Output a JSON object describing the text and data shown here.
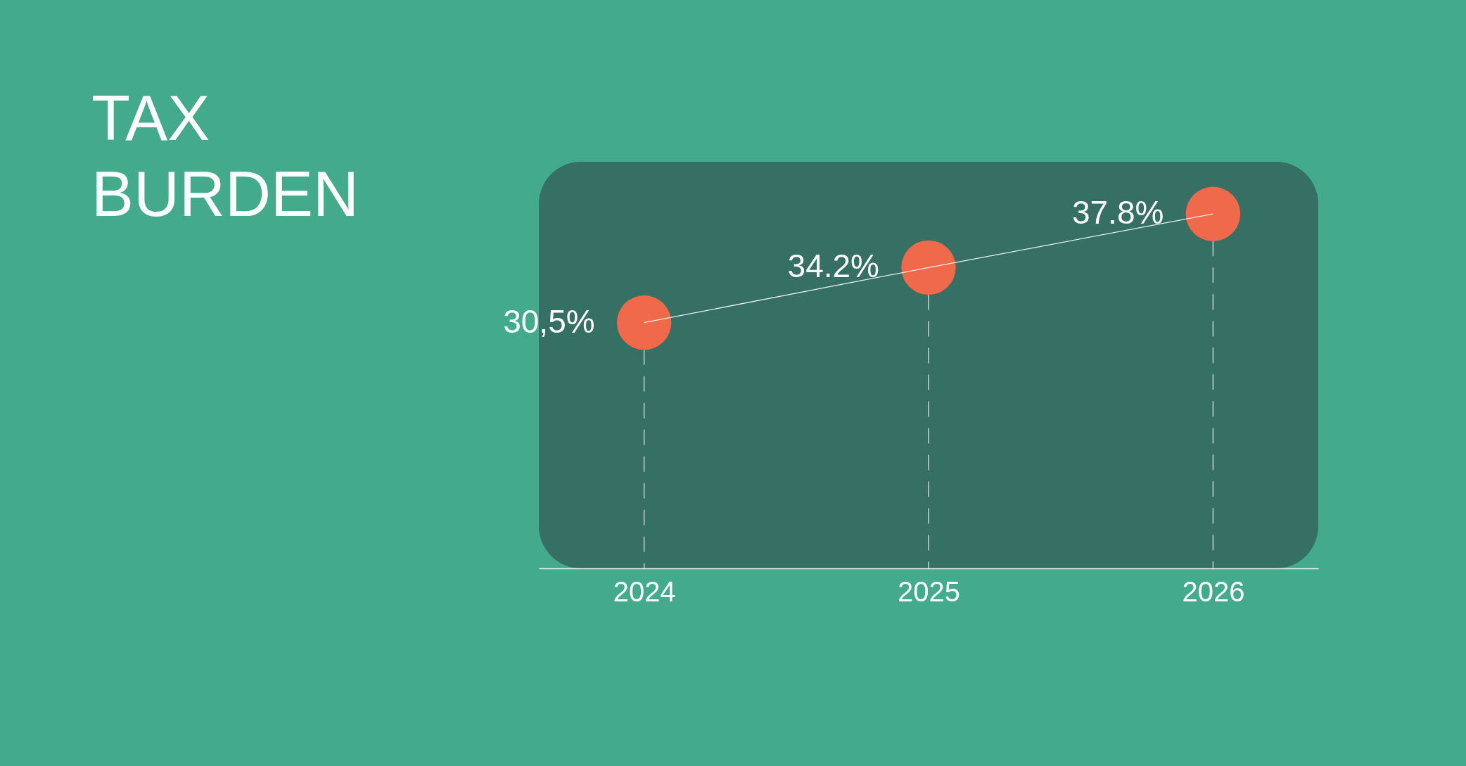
{
  "chart_data": {
    "type": "lollipop",
    "title": "TAX BURDEN",
    "categories": [
      "2024",
      "2025",
      "2026"
    ],
    "series": [
      {
        "color": "#f0694b",
        "values": [
          30.5,
          34.2,
          37.8
        ],
        "value_labels": [
          "30,5%",
          "34.2%",
          "37.8%"
        ],
        "marker": "circle"
      },
      {
        "type": "line",
        "color": "#e8f0ec",
        "values": [
          30.5,
          34.2,
          37.8
        ],
        "marker": "none"
      }
    ],
    "line_style": "solid",
    "tick_labels": "x"
  }
}
